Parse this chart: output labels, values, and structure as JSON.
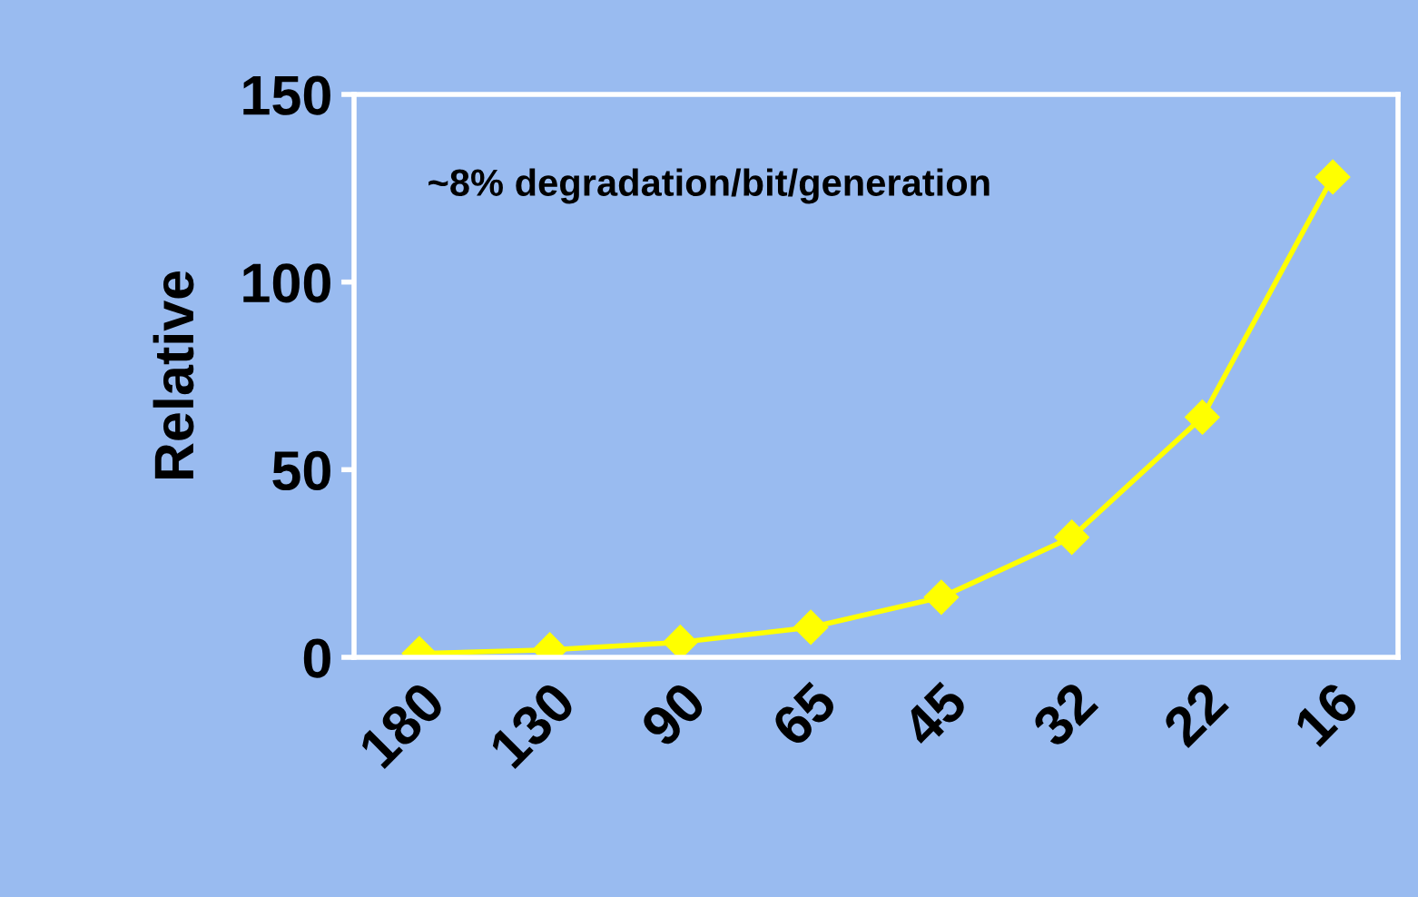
{
  "chart_data": {
    "type": "line",
    "ylabel": "Relative",
    "categories": [
      "180",
      "130",
      "90",
      "65",
      "45",
      "32",
      "22",
      "16"
    ],
    "series": [
      {
        "color": "#ffff00",
        "values": [
          1,
          2,
          4,
          8,
          16,
          32,
          64,
          128
        ]
      }
    ],
    "ylim": [
      0,
      150
    ],
    "yticks": [
      0,
      50,
      100,
      150
    ],
    "grid": false,
    "legend": false,
    "marker": "diamond",
    "line_style": "solid",
    "annotations": [
      "~8% degradation/bit/generation"
    ]
  }
}
